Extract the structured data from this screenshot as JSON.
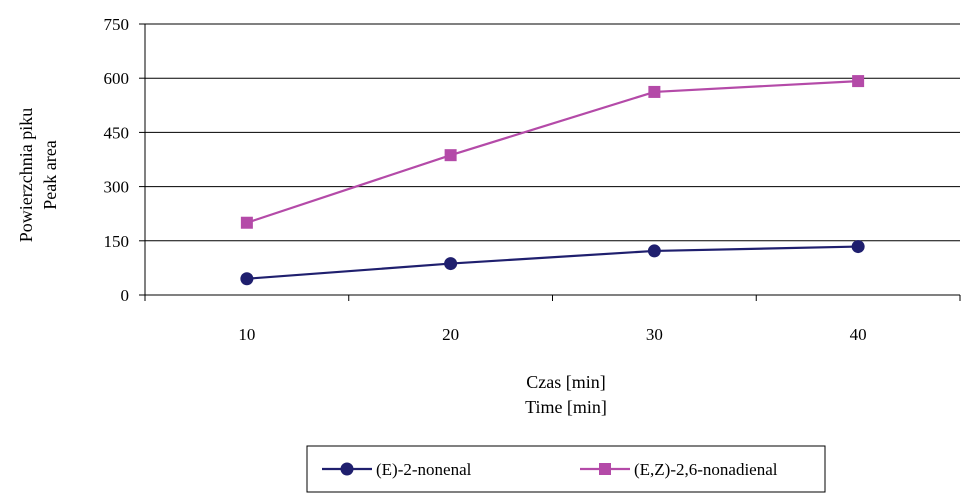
{
  "chart_data": {
    "type": "line",
    "categories": [
      "10",
      "20",
      "30",
      "40"
    ],
    "series": [
      {
        "name": "(E)-2-nonenal",
        "values": [
          45,
          87,
          122,
          134
        ],
        "color": "#1f1f6e",
        "marker": "circle"
      },
      {
        "name": "(E,Z)-2,6-nonadienal",
        "values": [
          200,
          387,
          562,
          592
        ],
        "color": "#b44aa8",
        "marker": "square"
      }
    ],
    "ylim": [
      0,
      750
    ],
    "yticks": [
      "0",
      "150",
      "300",
      "450",
      "600",
      "750"
    ],
    "ylabel_line1": "Powierzchnia piku",
    "ylabel_line2": "Peak area",
    "xlabel_line1": "Czas [min]",
    "xlabel_line2": "Time [min]",
    "grid": true,
    "legend_position": "bottom"
  }
}
